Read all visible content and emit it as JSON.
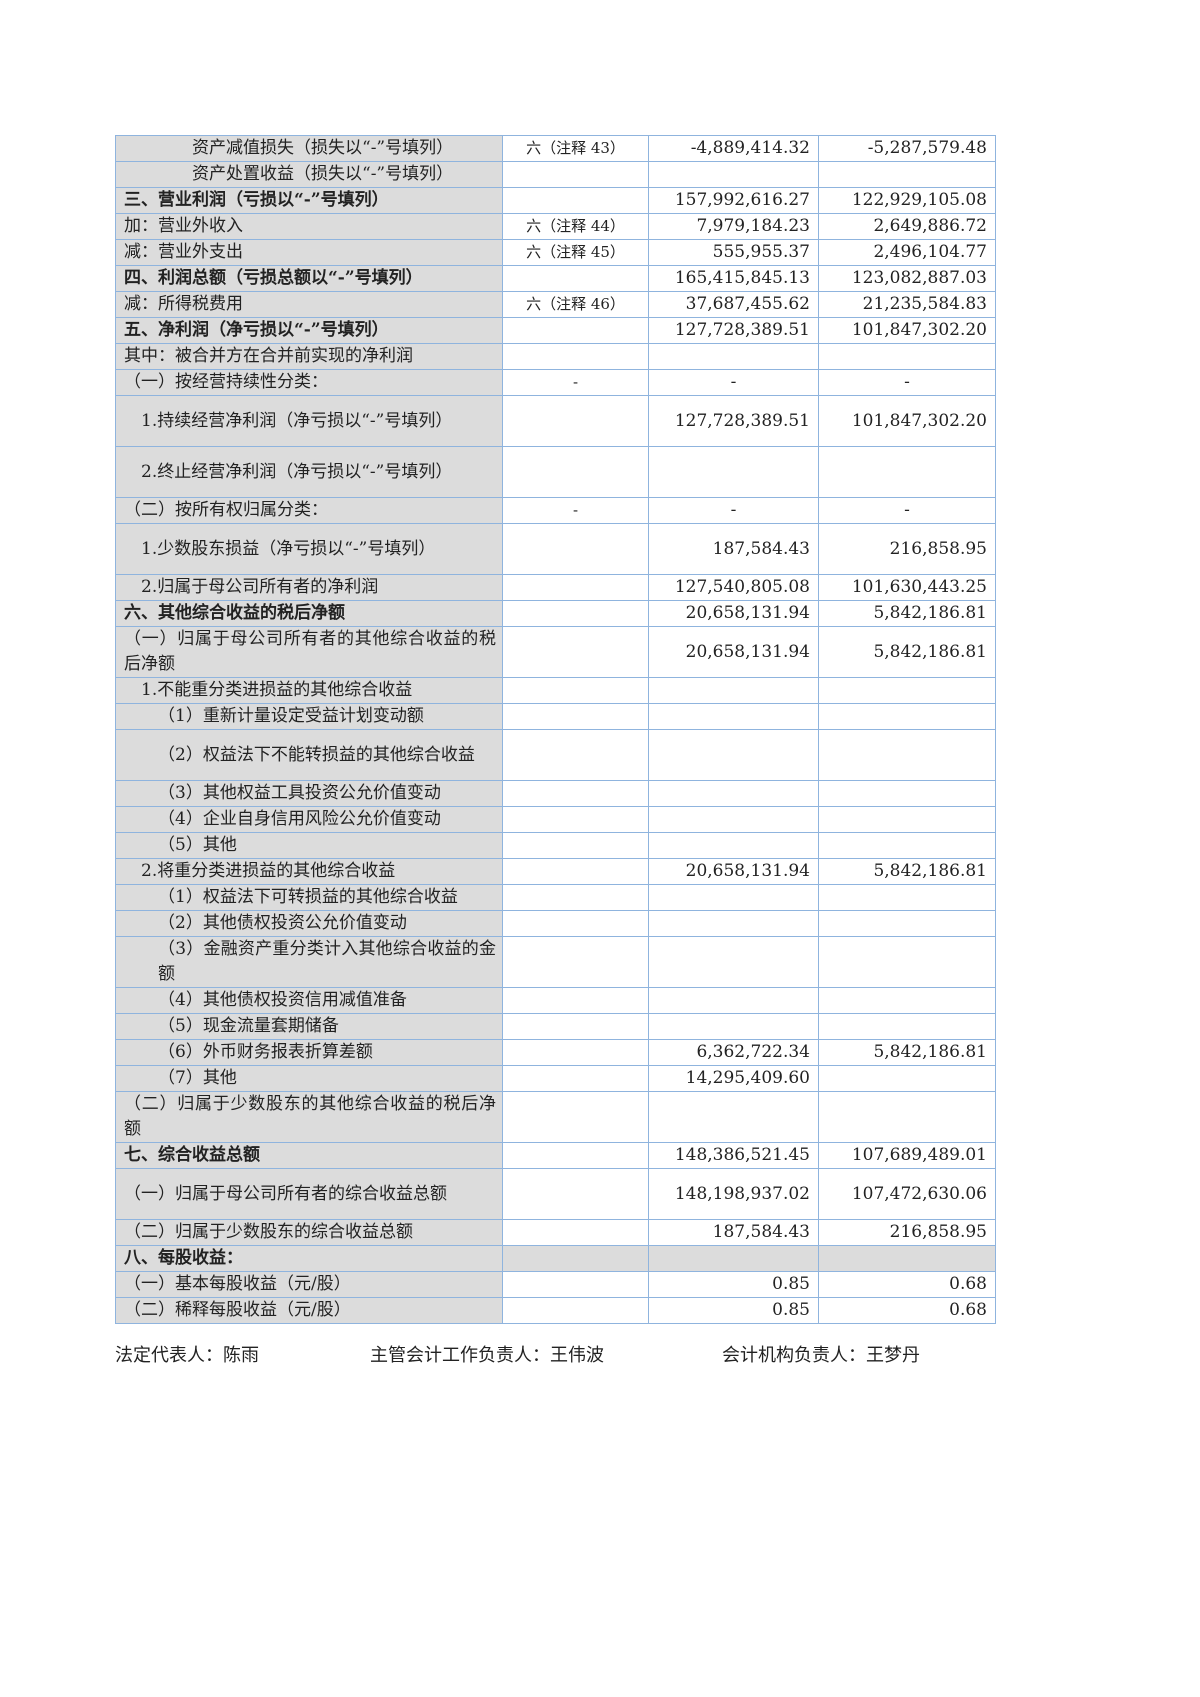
{
  "table": {
    "rows": [
      {
        "label": "资产减值损失（损失以“-”号填列）",
        "indent": 2,
        "note": "六（注释 43）",
        "current": "-4,889,414.32",
        "prior": "-5,287,579.48"
      },
      {
        "label": "资产处置收益（损失以“-”号填列）",
        "indent": 2,
        "note": "",
        "current": "",
        "prior": ""
      },
      {
        "label": "三、营业利润（亏损以“-”号填列）",
        "indent": 0,
        "bold": true,
        "note": "",
        "current": "157,992,616.27",
        "prior": "122,929,105.08"
      },
      {
        "label": "加：营业外收入",
        "indent": 0,
        "note": "六（注释 44）",
        "current": "7,979,184.23",
        "prior": "2,649,886.72"
      },
      {
        "label": "减：营业外支出",
        "indent": 0,
        "note": "六（注释 45）",
        "current": "555,955.37",
        "prior": "2,496,104.77"
      },
      {
        "label": "四、利润总额（亏损总额以“-”号填列）",
        "indent": 0,
        "bold": true,
        "note": "",
        "current": "165,415,845.13",
        "prior": "123,082,887.03"
      },
      {
        "label": "减：所得税费用",
        "indent": 0,
        "note": "六（注释 46）",
        "current": "37,687,455.62",
        "prior": "21,235,584.83"
      },
      {
        "label": "五、净利润（净亏损以“-”号填列）",
        "indent": 0,
        "bold": true,
        "note": "",
        "current": "127,728,389.51",
        "prior": "101,847,302.20"
      },
      {
        "label": "其中：被合并方在合并前实现的净利润",
        "indent": 0,
        "note": "",
        "current": "",
        "prior": ""
      },
      {
        "label": "（一）按经营持续性分类：",
        "indent": 0,
        "note": "-",
        "current": "-",
        "prior": "-",
        "center": true
      },
      {
        "label": "1.持续经营净利润（净亏损以“-”号填列）",
        "indent": 0.5,
        "double": true,
        "note": "",
        "current": "127,728,389.51",
        "prior": "101,847,302.20"
      },
      {
        "label": "2.终止经营净利润（净亏损以“-”号填列）",
        "indent": 0.5,
        "double": true,
        "note": "",
        "current": "",
        "prior": ""
      },
      {
        "label": "（二）按所有权归属分类：",
        "indent": 0,
        "note": "-",
        "current": "-",
        "prior": "-",
        "center": true
      },
      {
        "label": "1.少数股东损益（净亏损以“-”号填列）",
        "indent": 0.5,
        "double": true,
        "note": "",
        "current": "187,584.43",
        "prior": "216,858.95"
      },
      {
        "label": "2.归属于母公司所有者的净利润",
        "indent": 0.5,
        "note": "",
        "current": "127,540,805.08",
        "prior": "101,630,443.25"
      },
      {
        "label": "六、其他综合收益的税后净额",
        "indent": 0,
        "bold": true,
        "note": "",
        "current": "20,658,131.94",
        "prior": "5,842,186.81"
      },
      {
        "label": "（一）归属于母公司所有者的其他综合收益的税后净额",
        "indent": 0,
        "double": true,
        "note": "",
        "current": "20,658,131.94",
        "prior": "5,842,186.81"
      },
      {
        "label": "1.不能重分类进损益的其他综合收益",
        "indent": 0.5,
        "note": "",
        "current": "",
        "prior": ""
      },
      {
        "label": "（1）重新计量设定受益计划变动额",
        "indent": 1,
        "note": "",
        "current": "",
        "prior": ""
      },
      {
        "label": "（2）权益法下不能转损益的其他综合收益",
        "indent": 1,
        "double": true,
        "note": "",
        "current": "",
        "prior": ""
      },
      {
        "label": "（3）其他权益工具投资公允价值变动",
        "indent": 1,
        "note": "",
        "current": "",
        "prior": ""
      },
      {
        "label": "（4）企业自身信用风险公允价值变动",
        "indent": 1,
        "note": "",
        "current": "",
        "prior": ""
      },
      {
        "label": "（5）其他",
        "indent": 1,
        "note": "",
        "current": "",
        "prior": ""
      },
      {
        "label": "2.将重分类进损益的其他综合收益",
        "indent": 0.5,
        "note": "",
        "current": "20,658,131.94",
        "prior": "5,842,186.81"
      },
      {
        "label": "（1）权益法下可转损益的其他综合收益",
        "indent": 1,
        "note": "",
        "current": "",
        "prior": ""
      },
      {
        "label": "（2）其他债权投资公允价值变动",
        "indent": 1,
        "note": "",
        "current": "",
        "prior": ""
      },
      {
        "label": "（3）金融资产重分类计入其他综合收益的金额",
        "indent": 1,
        "double": true,
        "note": "",
        "current": "",
        "prior": ""
      },
      {
        "label": "（4）其他债权投资信用减值准备",
        "indent": 1,
        "note": "",
        "current": "",
        "prior": ""
      },
      {
        "label": "（5）现金流量套期储备",
        "indent": 1,
        "note": "",
        "current": "",
        "prior": ""
      },
      {
        "label": "（6）外币财务报表折算差额",
        "indent": 1,
        "note": "",
        "current": "6,362,722.34",
        "prior": "5,842,186.81"
      },
      {
        "label": "（7）其他",
        "indent": 1,
        "note": "",
        "current": "14,295,409.60",
        "prior": ""
      },
      {
        "label": "（二）归属于少数股东的其他综合收益的税后净额",
        "indent": 0,
        "double": true,
        "note": "",
        "current": "",
        "prior": ""
      },
      {
        "label": "七、综合收益总额",
        "indent": 0,
        "bold": true,
        "note": "",
        "current": "148,386,521.45",
        "prior": "107,689,489.01"
      },
      {
        "label": "（一）归属于母公司所有者的综合收益总额",
        "indent": 0,
        "double": true,
        "note": "",
        "current": "148,198,937.02",
        "prior": "107,472,630.06"
      },
      {
        "label": "（二）归属于少数股东的综合收益总额",
        "indent": 0,
        "note": "",
        "current": "187,584.43",
        "prior": "216,858.95"
      },
      {
        "label": "八、每股收益：",
        "indent": 0,
        "bold": true,
        "allgray": true,
        "note": "",
        "current": "",
        "prior": ""
      },
      {
        "label": "（一）基本每股收益（元/股）",
        "indent": 0,
        "note": "",
        "current": "0.85",
        "prior": "0.68"
      },
      {
        "label": "（二）稀释每股收益（元/股）",
        "indent": 0,
        "note": "",
        "current": "0.85",
        "prior": "0.68"
      }
    ]
  },
  "signatures": {
    "legal_rep": "法定代表人：陈雨",
    "accounting_head": "主管会计工作负责人：王伟波",
    "accounting_dept_head": "会计机构负责人：王梦丹"
  },
  "colors": {
    "border": "#8fb4de",
    "label_fill": "#dcdcdc"
  }
}
